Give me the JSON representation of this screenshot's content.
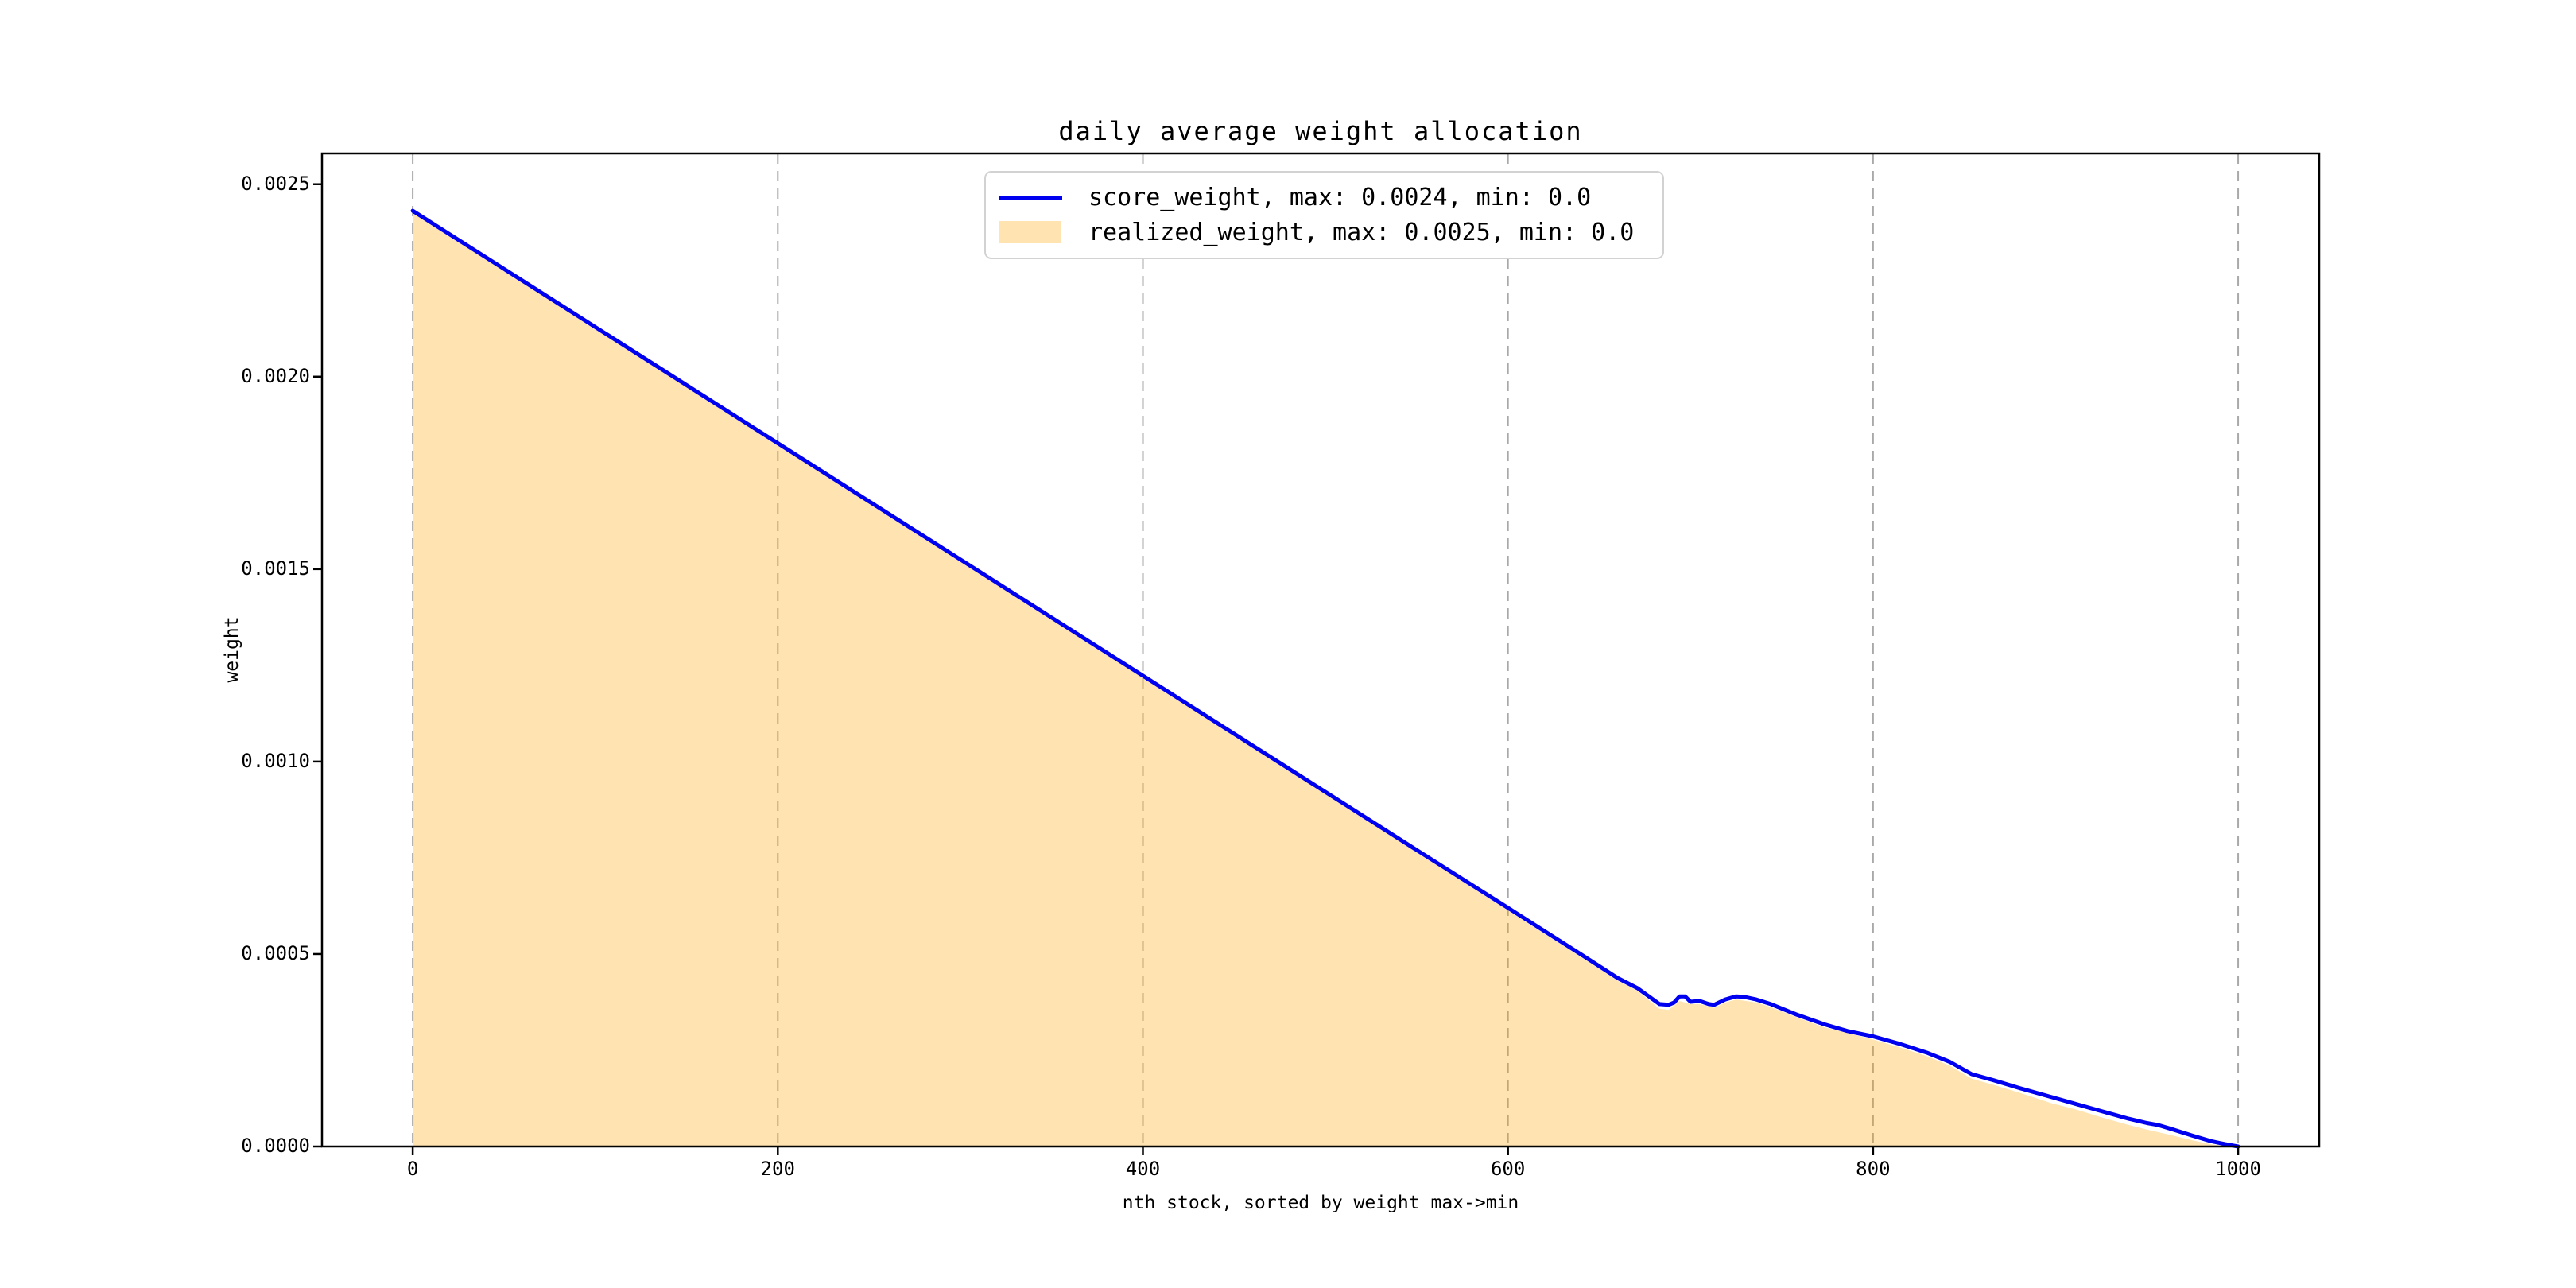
{
  "chart_data": {
    "type": "area",
    "title": "daily average weight allocation",
    "xlabel": "nth stock, sorted by weight max->min",
    "ylabel": "weight",
    "xlim": [
      -49.7,
      1044.4
    ],
    "ylim": [
      0,
      0.00258
    ],
    "x_ticks": [
      0,
      200,
      400,
      600,
      800,
      1000
    ],
    "x_tick_labels": [
      "0",
      "200",
      "400",
      "600",
      "800",
      "1000"
    ],
    "y_ticks": [
      0,
      0.0005,
      0.001,
      0.0015,
      0.002,
      0.0025
    ],
    "y_tick_labels": [
      "0.0000",
      "0.0005",
      "0.0010",
      "0.0015",
      "0.0020",
      "0.0025"
    ],
    "grid": {
      "vertical": true,
      "horizontal": false,
      "style": "dashed",
      "color": "#a9a9a9"
    },
    "legend": {
      "position": "upper center",
      "entries": [
        {
          "label": "score_weight, max: 0.0024, min: 0.0",
          "swatch": "line",
          "color": "#0000f0"
        },
        {
          "label": "realized_weight, max: 0.0025, min: 0.0",
          "swatch": "patch",
          "color": "rgba(255,165,0,0.30)"
        }
      ]
    },
    "series": [
      {
        "name": "score_weight",
        "type": "line",
        "color": "#0000f0",
        "max": 0.0024,
        "min": 0.0,
        "points": [
          [
            0,
            0.002431
          ],
          [
            50,
            0.00228
          ],
          [
            100,
            0.002129
          ],
          [
            150,
            0.001978
          ],
          [
            200,
            0.001827
          ],
          [
            250,
            0.001676
          ],
          [
            300,
            0.001525
          ],
          [
            350,
            0.001374
          ],
          [
            400,
            0.001223
          ],
          [
            450,
            0.001072
          ],
          [
            500,
            0.000921
          ],
          [
            550,
            0.00077
          ],
          [
            600,
            0.00062
          ],
          [
            640,
            0.000499
          ],
          [
            660,
            0.000438
          ],
          [
            671,
            0.000411
          ],
          [
            683,
            0.00037
          ],
          [
            688,
            0.000368
          ],
          [
            691,
            0.000374
          ],
          [
            694,
            0.00039
          ],
          [
            697,
            0.00039
          ],
          [
            700,
            0.000376
          ],
          [
            705,
            0.000378
          ],
          [
            710,
            0.00037
          ],
          [
            713,
            0.000368
          ],
          [
            719,
            0.000382
          ],
          [
            725,
            0.00039
          ],
          [
            729,
            0.000389
          ],
          [
            736,
            0.000382
          ],
          [
            744,
            0.00037
          ],
          [
            758,
            0.000343
          ],
          [
            773,
            0.000318
          ],
          [
            786,
            0.0003
          ],
          [
            800,
            0.000286
          ],
          [
            815,
            0.000266
          ],
          [
            830,
            0.000243
          ],
          [
            842,
            0.00022
          ],
          [
            854,
            0.000188
          ],
          [
            866,
            0.000172
          ],
          [
            880,
            0.000152
          ],
          [
            898,
            0.000128
          ],
          [
            910,
            0.000112
          ],
          [
            925,
            9.2e-05
          ],
          [
            940,
            7.2e-05
          ],
          [
            950,
            6.1e-05
          ],
          [
            956,
            5.6e-05
          ],
          [
            963,
            4.6e-05
          ],
          [
            975,
            2.8e-05
          ],
          [
            985,
            1.4e-05
          ],
          [
            993,
            6e-06
          ],
          [
            1000,
            0
          ]
        ]
      },
      {
        "name": "realized_weight",
        "type": "area",
        "color": "rgba(255,165,0,0.30)",
        "max": 0.0025,
        "min": 0.0,
        "points": [
          [
            0,
            0.002425
          ],
          [
            100,
            0.002123
          ],
          [
            200,
            0.001821
          ],
          [
            300,
            0.001519
          ],
          [
            400,
            0.001217
          ],
          [
            500,
            0.000915
          ],
          [
            600,
            0.000613
          ],
          [
            640,
            0.000492
          ],
          [
            660,
            0.000431
          ],
          [
            671,
            0.000404
          ],
          [
            683,
            0.000358
          ],
          [
            688,
            0.000355
          ],
          [
            694,
            0.000378
          ],
          [
            700,
            0.00037
          ],
          [
            705,
            0.00037
          ],
          [
            713,
            0.00036
          ],
          [
            719,
            0.000374
          ],
          [
            725,
            0.000382
          ],
          [
            736,
            0.000374
          ],
          [
            744,
            0.000362
          ],
          [
            758,
            0.000336
          ],
          [
            773,
            0.00031
          ],
          [
            800,
            0.000278
          ],
          [
            815,
            0.000257
          ],
          [
            830,
            0.000234
          ],
          [
            842,
            0.00021
          ],
          [
            854,
            0.000176
          ],
          [
            866,
            0.00016
          ],
          [
            880,
            0.00014
          ],
          [
            898,
            0.000112
          ],
          [
            910,
            9.8e-05
          ],
          [
            925,
            7.6e-05
          ],
          [
            940,
            5.6e-05
          ],
          [
            950,
            4.4e-05
          ],
          [
            963,
            3e-05
          ],
          [
            975,
            1.6e-05
          ],
          [
            985,
            6e-06
          ],
          [
            993,
            1e-06
          ],
          [
            1000,
            0
          ]
        ]
      }
    ],
    "spine_color": "#000000"
  }
}
